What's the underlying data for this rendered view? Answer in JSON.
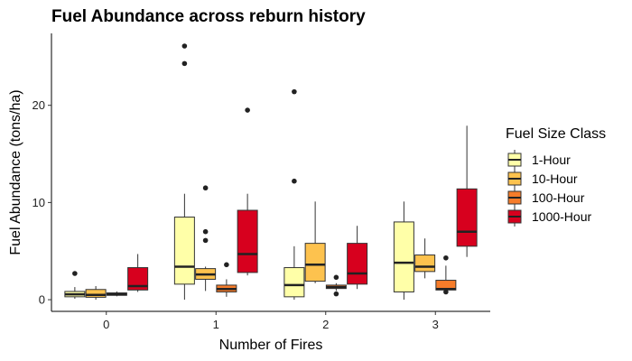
{
  "chart_data": {
    "type": "boxplot",
    "title": "Fuel Abundance across reburn history",
    "xlabel": "Number of Fires",
    "ylabel": "Fuel Abundance (tons/ha)",
    "categories": [
      "0",
      "1",
      "2",
      "3"
    ],
    "ylim": [
      -1.2,
      27.4
    ],
    "yticks": [
      0,
      10,
      20
    ],
    "grid": false,
    "legend": {
      "title": "Fuel Size Class",
      "position": "right"
    },
    "series": [
      {
        "name": "1-Hour",
        "color": "#FFFFA8",
        "boxes": [
          {
            "whisker_low": 0.1,
            "q1": 0.3,
            "median": 0.55,
            "q3": 0.85,
            "whisker_high": 1.3,
            "outliers": [
              2.7
            ]
          },
          {
            "whisker_low": 0.0,
            "q1": 1.6,
            "median": 3.4,
            "q3": 8.5,
            "whisker_high": 10.9,
            "outliers": [
              24.3,
              26.1
            ]
          },
          {
            "whisker_low": 0.0,
            "q1": 0.3,
            "median": 1.5,
            "q3": 3.3,
            "whisker_high": 5.5,
            "outliers": [
              12.2,
              21.4
            ]
          },
          {
            "whisker_low": 0.0,
            "q1": 0.8,
            "median": 3.8,
            "q3": 8.0,
            "whisker_high": 10.1,
            "outliers": []
          }
        ]
      },
      {
        "name": "10-Hour",
        "color": "#FDC24E",
        "boxes": [
          {
            "whisker_low": 0.0,
            "q1": 0.25,
            "median": 0.5,
            "q3": 1.05,
            "whisker_high": 1.4,
            "outliers": []
          },
          {
            "whisker_low": 0.9,
            "q1": 2.1,
            "median": 2.6,
            "q3": 3.2,
            "whisker_high": 3.4,
            "outliers": [
              6.1,
              7.0,
              11.5
            ]
          },
          {
            "whisker_low": 1.7,
            "q1": 1.9,
            "median": 3.6,
            "q3": 5.8,
            "whisker_high": 10.1,
            "outliers": []
          },
          {
            "whisker_low": 2.2,
            "q1": 2.9,
            "median": 3.4,
            "q3": 4.6,
            "whisker_high": 6.3,
            "outliers": []
          }
        ]
      },
      {
        "name": "100-Hour",
        "color": "#F67C2A",
        "boxes": [
          {
            "whisker_low": 0.35,
            "q1": 0.45,
            "median": 0.55,
            "q3": 0.7,
            "whisker_high": 0.85,
            "outliers": []
          },
          {
            "whisker_low": 0.3,
            "q1": 0.8,
            "median": 1.1,
            "q3": 1.5,
            "whisker_high": 2.1,
            "outliers": [
              3.6
            ]
          },
          {
            "whisker_low": 0.9,
            "q1": 1.15,
            "median": 1.3,
            "q3": 1.5,
            "whisker_high": 1.7,
            "outliers": [
              0.6,
              2.3
            ]
          },
          {
            "whisker_low": 0.9,
            "q1": 1.0,
            "median": 1.1,
            "q3": 2.0,
            "whisker_high": 3.5,
            "outliers": [
              0.8,
              4.3
            ]
          }
        ]
      },
      {
        "name": "1000-Hour",
        "color": "#D7001E",
        "boxes": [
          {
            "whisker_low": 0.8,
            "q1": 1.0,
            "median": 1.4,
            "q3": 3.3,
            "whisker_high": 4.7,
            "outliers": []
          },
          {
            "whisker_low": 2.5,
            "q1": 2.8,
            "median": 4.7,
            "q3": 9.2,
            "whisker_high": 10.9,
            "outliers": [
              19.5
            ]
          },
          {
            "whisker_low": 1.1,
            "q1": 1.6,
            "median": 2.7,
            "q3": 5.8,
            "whisker_high": 7.6,
            "outliers": []
          },
          {
            "whisker_low": 4.4,
            "q1": 5.5,
            "median": 7.0,
            "q3": 11.4,
            "whisker_high": 17.9,
            "outliers": []
          }
        ]
      }
    ]
  }
}
